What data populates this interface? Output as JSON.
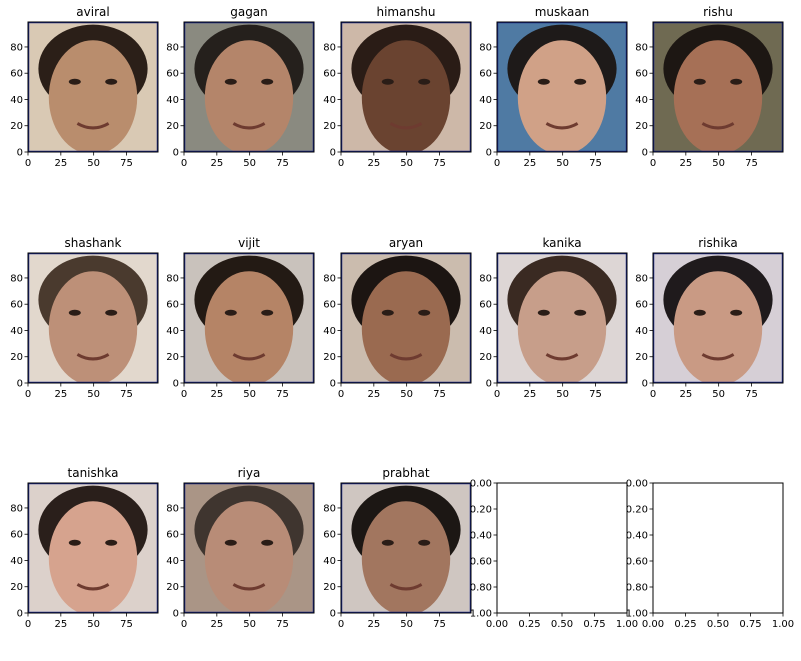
{
  "figure": {
    "grid_rows": 3,
    "grid_cols": 5
  },
  "chart_data": [
    {
      "type": "image",
      "title": "aviral",
      "xticks": [
        0,
        25,
        50,
        75
      ],
      "yticks": [
        0,
        20,
        40,
        60,
        80
      ],
      "xlim": [
        0,
        99
      ],
      "ylim": [
        99,
        0
      ],
      "grid": false,
      "image": "face photo",
      "colors": {
        "skin": "#b98d6d",
        "background": "#d9c9b4",
        "hair": "#2b1f18"
      }
    },
    {
      "type": "image",
      "title": "gagan",
      "xticks": [
        0,
        25,
        50,
        75
      ],
      "yticks": [
        0,
        20,
        40,
        60,
        80
      ],
      "xlim": [
        0,
        99
      ],
      "ylim": [
        99,
        0
      ],
      "grid": false,
      "image": "face photo",
      "colors": {
        "skin": "#b4856a",
        "background": "#8a8a80",
        "hair": "#25201c"
      }
    },
    {
      "type": "image",
      "title": "himanshu",
      "xticks": [
        0,
        25,
        50,
        75
      ],
      "yticks": [
        0,
        20,
        40,
        60,
        80
      ],
      "xlim": [
        0,
        99
      ],
      "ylim": [
        99,
        0
      ],
      "grid": false,
      "image": "face photo",
      "colors": {
        "skin": "#6a4330",
        "background": "#cdb8a8",
        "hair": "#2a1c16"
      }
    },
    {
      "type": "image",
      "title": "muskaan",
      "xticks": [
        0,
        25,
        50,
        75
      ],
      "yticks": [
        0,
        20,
        40,
        60,
        80
      ],
      "xlim": [
        0,
        99
      ],
      "ylim": [
        99,
        0
      ],
      "grid": false,
      "image": "face photo",
      "colors": {
        "skin": "#d0a187",
        "background": "#4f7aa3",
        "hair": "#1e1a19"
      }
    },
    {
      "type": "image",
      "title": "rishu",
      "xticks": [
        0,
        25,
        50,
        75
      ],
      "yticks": [
        0,
        20,
        40,
        60,
        80
      ],
      "xlim": [
        0,
        99
      ],
      "ylim": [
        99,
        0
      ],
      "grid": false,
      "image": "face photo",
      "colors": {
        "skin": "#a67056",
        "background": "#6f6a52",
        "hair": "#1d1713"
      }
    },
    {
      "type": "image",
      "title": "shashank",
      "xticks": [
        0,
        25,
        50,
        75
      ],
      "yticks": [
        0,
        20,
        40,
        60,
        80
      ],
      "xlim": [
        0,
        99
      ],
      "ylim": [
        99,
        0
      ],
      "grid": false,
      "image": "face photo",
      "colors": {
        "skin": "#bd9078",
        "background": "#e2d8cd",
        "hair": "#4a3a2e"
      }
    },
    {
      "type": "image",
      "title": "vijit",
      "xticks": [
        0,
        25,
        50,
        75
      ],
      "yticks": [
        0,
        20,
        40,
        60,
        80
      ],
      "xlim": [
        0,
        99
      ],
      "ylim": [
        99,
        0
      ],
      "grid": false,
      "image": "face photo",
      "colors": {
        "skin": "#b58466",
        "background": "#c9c2bc",
        "hair": "#231a14"
      }
    },
    {
      "type": "image",
      "title": "aryan",
      "xticks": [
        0,
        25,
        50,
        75
      ],
      "yticks": [
        0,
        20,
        40,
        60,
        80
      ],
      "xlim": [
        0,
        99
      ],
      "ylim": [
        99,
        0
      ],
      "grid": false,
      "image": "face photo",
      "colors": {
        "skin": "#9a6a50",
        "background": "#cbbcae",
        "hair": "#1c1512"
      }
    },
    {
      "type": "image",
      "title": "kanika",
      "xticks": [
        0,
        25,
        50,
        75
      ],
      "yticks": [
        0,
        20,
        40,
        60,
        80
      ],
      "xlim": [
        0,
        99
      ],
      "ylim": [
        99,
        0
      ],
      "grid": false,
      "image": "face photo",
      "colors": {
        "skin": "#c79e8a",
        "background": "#ddd6d5",
        "hair": "#3a2a22"
      }
    },
    {
      "type": "image",
      "title": "rishika",
      "xticks": [
        0,
        25,
        50,
        75
      ],
      "yticks": [
        0,
        20,
        40,
        60,
        80
      ],
      "xlim": [
        0,
        99
      ],
      "ylim": [
        99,
        0
      ],
      "grid": false,
      "image": "face photo",
      "colors": {
        "skin": "#c99a84",
        "background": "#d6cfd6",
        "hair": "#1f1a1c"
      }
    },
    {
      "type": "image",
      "title": "tanishka",
      "xticks": [
        0,
        25,
        50,
        75
      ],
      "yticks": [
        0,
        20,
        40,
        60,
        80
      ],
      "xlim": [
        0,
        99
      ],
      "ylim": [
        99,
        0
      ],
      "grid": false,
      "image": "face photo",
      "colors": {
        "skin": "#d6a38e",
        "background": "#dcd1cb",
        "hair": "#2a1f1b"
      }
    },
    {
      "type": "image",
      "title": "riya",
      "xticks": [
        0,
        25,
        50,
        75
      ],
      "yticks": [
        0,
        20,
        40,
        60,
        80
      ],
      "xlim": [
        0,
        99
      ],
      "ylim": [
        99,
        0
      ],
      "grid": false,
      "image": "face photo",
      "colors": {
        "skin": "#b88c77",
        "background": "#aa9586",
        "hair": "#3f352f"
      }
    },
    {
      "type": "image",
      "title": "prabhat",
      "xticks": [
        0,
        25,
        50,
        75
      ],
      "yticks": [
        0,
        20,
        40,
        60,
        80
      ],
      "xlim": [
        0,
        99
      ],
      "ylim": [
        99,
        0
      ],
      "grid": false,
      "image": "face photo",
      "colors": {
        "skin": "#a2765f",
        "background": "#cfc6c1",
        "hair": "#1c1714"
      }
    },
    {
      "type": "empty",
      "title": "",
      "xticks": [
        0.0,
        0.25,
        0.5,
        0.75,
        1.0
      ],
      "yticks": [
        0.0,
        0.2,
        0.4,
        0.6,
        0.8,
        1.0
      ],
      "xlim": [
        0,
        1
      ],
      "ylim": [
        0,
        1
      ],
      "grid": false
    },
    {
      "type": "empty",
      "title": "",
      "xticks": [
        0.0,
        0.25,
        0.5,
        0.75,
        1.0
      ],
      "yticks": [
        0.0,
        0.2,
        0.4,
        0.6,
        0.8,
        1.0
      ],
      "xlim": [
        0,
        1
      ],
      "ylim": [
        0,
        1
      ],
      "grid": false
    }
  ]
}
